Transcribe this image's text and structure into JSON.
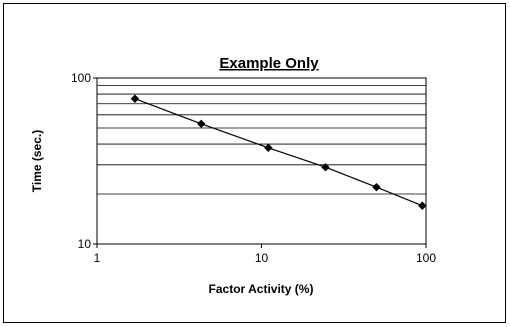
{
  "chart_data": {
    "type": "scatter",
    "title": "Example Only",
    "xlabel": "Factor Activity (%)",
    "ylabel": "Time (sec.)",
    "x_scale": "log",
    "y_scale": "log",
    "xlim": [
      1,
      100
    ],
    "ylim": [
      10,
      100
    ],
    "x_ticks": [
      "1",
      "10",
      "100"
    ],
    "y_ticks": [
      "10",
      "100"
    ],
    "grid": "horizontal",
    "legend": "none",
    "series": [
      {
        "x": [
          1.7,
          4.3,
          11,
          24.5,
          50,
          95
        ],
        "y": [
          75,
          53,
          38,
          29,
          22,
          17
        ]
      }
    ],
    "colors": {
      "line": "#000000",
      "grid": "#000000",
      "marker": "#000000"
    }
  }
}
